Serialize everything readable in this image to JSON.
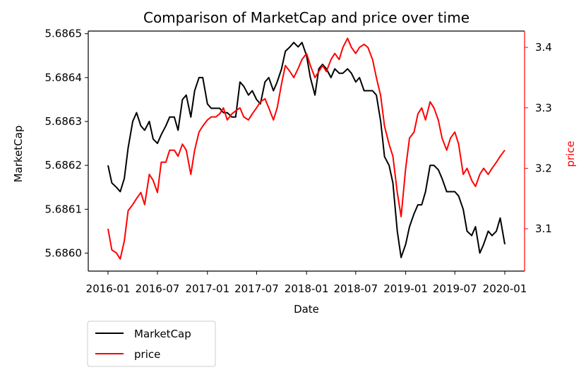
{
  "chart_data": {
    "type": "line",
    "title": "Comparison of MarketCap and price over time",
    "xlabel": "Date",
    "ylabel_left": "MarketCap",
    "ylabel_right": "price",
    "x_ticks": [
      "2016-01",
      "2016-07",
      "2017-01",
      "2017-07",
      "2018-01",
      "2018-07",
      "2019-01",
      "2019-07",
      "2020-01"
    ],
    "y_left_ticks": [
      "5.6860",
      "5.6861",
      "5.6862",
      "5.6863",
      "5.6864",
      "5.6865"
    ],
    "y_right_ticks": [
      "3.1",
      "3.2",
      "3.3",
      "3.4"
    ],
    "y_left_range": [
      5.685959,
      5.686506
    ],
    "y_right_range": [
      3.03,
      3.427
    ],
    "grid": false,
    "legend_position": "below-left",
    "series": [
      {
        "name": "MarketCap",
        "color": "#000000",
        "axis": "left",
        "points": [
          [
            "2016-01-01",
            5.6862
          ],
          [
            "2016-01-15",
            5.68616
          ],
          [
            "2016-02-01",
            5.68615
          ],
          [
            "2016-02-15",
            5.68614
          ],
          [
            "2016-03-01",
            5.68617
          ],
          [
            "2016-03-15",
            5.68624
          ],
          [
            "2016-04-01",
            5.6863
          ],
          [
            "2016-04-15",
            5.68632
          ],
          [
            "2016-05-01",
            5.68629
          ],
          [
            "2016-05-15",
            5.68628
          ],
          [
            "2016-06-01",
            5.6863
          ],
          [
            "2016-06-15",
            5.68626
          ],
          [
            "2016-07-01",
            5.68625
          ],
          [
            "2016-07-15",
            5.68627
          ],
          [
            "2016-08-01",
            5.68629
          ],
          [
            "2016-08-15",
            5.68631
          ],
          [
            "2016-09-01",
            5.68631
          ],
          [
            "2016-09-15",
            5.68628
          ],
          [
            "2016-10-01",
            5.68635
          ],
          [
            "2016-10-15",
            5.68636
          ],
          [
            "2016-11-01",
            5.68631
          ],
          [
            "2016-11-15",
            5.68637
          ],
          [
            "2016-12-01",
            5.6864
          ],
          [
            "2016-12-15",
            5.6864
          ],
          [
            "2017-01-01",
            5.68634
          ],
          [
            "2017-01-15",
            5.68633
          ],
          [
            "2017-02-01",
            5.68633
          ],
          [
            "2017-02-15",
            5.68633
          ],
          [
            "2017-03-01",
            5.68632
          ],
          [
            "2017-03-15",
            5.68632
          ],
          [
            "2017-04-01",
            5.68631
          ],
          [
            "2017-04-15",
            5.68631
          ],
          [
            "2017-05-01",
            5.68639
          ],
          [
            "2017-05-15",
            5.68638
          ],
          [
            "2017-06-01",
            5.68636
          ],
          [
            "2017-06-15",
            5.68637
          ],
          [
            "2017-07-01",
            5.68635
          ],
          [
            "2017-07-15",
            5.68634
          ],
          [
            "2017-08-01",
            5.68639
          ],
          [
            "2017-08-15",
            5.6864
          ],
          [
            "2017-09-01",
            5.68637
          ],
          [
            "2017-09-15",
            5.68639
          ],
          [
            "2017-10-01",
            5.68642
          ],
          [
            "2017-10-15",
            5.68646
          ],
          [
            "2017-11-01",
            5.68647
          ],
          [
            "2017-11-15",
            5.68648
          ],
          [
            "2017-12-01",
            5.68647
          ],
          [
            "2017-12-15",
            5.68648
          ],
          [
            "2018-01-01",
            5.68645
          ],
          [
            "2018-01-15",
            5.6864
          ],
          [
            "2018-02-01",
            5.68636
          ],
          [
            "2018-02-15",
            5.68642
          ],
          [
            "2018-03-01",
            5.68643
          ],
          [
            "2018-03-15",
            5.68642
          ],
          [
            "2018-04-01",
            5.6864
          ],
          [
            "2018-04-15",
            5.68642
          ],
          [
            "2018-05-01",
            5.68641
          ],
          [
            "2018-05-15",
            5.68641
          ],
          [
            "2018-06-01",
            5.68642
          ],
          [
            "2018-06-15",
            5.68641
          ],
          [
            "2018-07-01",
            5.68639
          ],
          [
            "2018-07-15",
            5.6864
          ],
          [
            "2018-08-01",
            5.68637
          ],
          [
            "2018-08-15",
            5.68637
          ],
          [
            "2018-09-01",
            5.68637
          ],
          [
            "2018-09-15",
            5.68636
          ],
          [
            "2018-10-01",
            5.6863
          ],
          [
            "2018-10-15",
            5.68622
          ],
          [
            "2018-11-01",
            5.6862
          ],
          [
            "2018-11-15",
            5.68616
          ],
          [
            "2018-12-01",
            5.68605
          ],
          [
            "2018-12-15",
            5.68599
          ],
          [
            "2019-01-01",
            5.68602
          ],
          [
            "2019-01-15",
            5.68606
          ],
          [
            "2019-02-01",
            5.68609
          ],
          [
            "2019-02-15",
            5.68611
          ],
          [
            "2019-03-01",
            5.68611
          ],
          [
            "2019-03-15",
            5.68614
          ],
          [
            "2019-04-01",
            5.6862
          ],
          [
            "2019-04-15",
            5.6862
          ],
          [
            "2019-05-01",
            5.68619
          ],
          [
            "2019-05-15",
            5.68617
          ],
          [
            "2019-06-01",
            5.68614
          ],
          [
            "2019-06-15",
            5.68614
          ],
          [
            "2019-07-01",
            5.68614
          ],
          [
            "2019-07-15",
            5.68613
          ],
          [
            "2019-08-01",
            5.6861
          ],
          [
            "2019-08-15",
            5.68605
          ],
          [
            "2019-09-01",
            5.68604
          ],
          [
            "2019-09-15",
            5.68606
          ],
          [
            "2019-10-01",
            5.686
          ],
          [
            "2019-10-15",
            5.68602
          ],
          [
            "2019-11-01",
            5.68605
          ],
          [
            "2019-11-15",
            5.68604
          ],
          [
            "2019-12-01",
            5.68605
          ],
          [
            "2019-12-15",
            5.68608
          ],
          [
            "2020-01-01",
            5.68602
          ]
        ]
      },
      {
        "name": "price",
        "color": "#ff0000",
        "axis": "right",
        "points": [
          [
            "2016-01-01",
            3.1
          ],
          [
            "2016-01-15",
            3.065
          ],
          [
            "2016-02-01",
            3.06
          ],
          [
            "2016-02-15",
            3.05
          ],
          [
            "2016-03-01",
            3.08
          ],
          [
            "2016-03-15",
            3.13
          ],
          [
            "2016-04-01",
            3.14
          ],
          [
            "2016-04-15",
            3.15
          ],
          [
            "2016-05-01",
            3.16
          ],
          [
            "2016-05-15",
            3.14
          ],
          [
            "2016-06-01",
            3.19
          ],
          [
            "2016-06-15",
            3.18
          ],
          [
            "2016-07-01",
            3.16
          ],
          [
            "2016-07-15",
            3.21
          ],
          [
            "2016-08-01",
            3.21
          ],
          [
            "2016-08-15",
            3.23
          ],
          [
            "2016-09-01",
            3.23
          ],
          [
            "2016-09-15",
            3.22
          ],
          [
            "2016-10-01",
            3.24
          ],
          [
            "2016-10-15",
            3.23
          ],
          [
            "2016-11-01",
            3.19
          ],
          [
            "2016-11-15",
            3.23
          ],
          [
            "2016-12-01",
            3.26
          ],
          [
            "2016-12-15",
            3.27
          ],
          [
            "2017-01-01",
            3.28
          ],
          [
            "2017-01-15",
            3.285
          ],
          [
            "2017-02-01",
            3.285
          ],
          [
            "2017-02-15",
            3.29
          ],
          [
            "2017-03-01",
            3.3
          ],
          [
            "2017-03-15",
            3.28
          ],
          [
            "2017-04-01",
            3.29
          ],
          [
            "2017-04-15",
            3.295
          ],
          [
            "2017-05-01",
            3.3
          ],
          [
            "2017-05-15",
            3.285
          ],
          [
            "2017-06-01",
            3.28
          ],
          [
            "2017-06-15",
            3.29
          ],
          [
            "2017-07-01",
            3.3
          ],
          [
            "2017-07-15",
            3.31
          ],
          [
            "2017-08-01",
            3.315
          ],
          [
            "2017-08-15",
            3.3
          ],
          [
            "2017-09-01",
            3.28
          ],
          [
            "2017-09-15",
            3.3
          ],
          [
            "2017-10-01",
            3.34
          ],
          [
            "2017-10-15",
            3.37
          ],
          [
            "2017-11-01",
            3.36
          ],
          [
            "2017-11-15",
            3.35
          ],
          [
            "2017-12-01",
            3.365
          ],
          [
            "2017-12-15",
            3.38
          ],
          [
            "2018-01-01",
            3.39
          ],
          [
            "2018-01-15",
            3.37
          ],
          [
            "2018-02-01",
            3.35
          ],
          [
            "2018-02-15",
            3.36
          ],
          [
            "2018-03-01",
            3.37
          ],
          [
            "2018-03-15",
            3.36
          ],
          [
            "2018-04-01",
            3.38
          ],
          [
            "2018-04-15",
            3.39
          ],
          [
            "2018-05-01",
            3.38
          ],
          [
            "2018-05-15",
            3.4
          ],
          [
            "2018-06-01",
            3.415
          ],
          [
            "2018-06-15",
            3.4
          ],
          [
            "2018-07-01",
            3.39
          ],
          [
            "2018-07-15",
            3.4
          ],
          [
            "2018-08-01",
            3.405
          ],
          [
            "2018-08-15",
            3.4
          ],
          [
            "2018-09-01",
            3.38
          ],
          [
            "2018-09-15",
            3.35
          ],
          [
            "2018-10-01",
            3.32
          ],
          [
            "2018-10-15",
            3.27
          ],
          [
            "2018-11-01",
            3.24
          ],
          [
            "2018-11-15",
            3.22
          ],
          [
            "2018-12-01",
            3.16
          ],
          [
            "2018-12-15",
            3.12
          ],
          [
            "2019-01-01",
            3.2
          ],
          [
            "2019-01-15",
            3.25
          ],
          [
            "2019-02-01",
            3.26
          ],
          [
            "2019-02-15",
            3.29
          ],
          [
            "2019-03-01",
            3.3
          ],
          [
            "2019-03-15",
            3.28
          ],
          [
            "2019-04-01",
            3.31
          ],
          [
            "2019-04-15",
            3.3
          ],
          [
            "2019-05-01",
            3.28
          ],
          [
            "2019-05-15",
            3.25
          ],
          [
            "2019-06-01",
            3.23
          ],
          [
            "2019-06-15",
            3.25
          ],
          [
            "2019-07-01",
            3.26
          ],
          [
            "2019-07-15",
            3.24
          ],
          [
            "2019-08-01",
            3.19
          ],
          [
            "2019-08-15",
            3.2
          ],
          [
            "2019-09-01",
            3.18
          ],
          [
            "2019-09-15",
            3.17
          ],
          [
            "2019-10-01",
            3.19
          ],
          [
            "2019-10-15",
            3.2
          ],
          [
            "2019-11-01",
            3.19
          ],
          [
            "2019-11-15",
            3.2
          ],
          [
            "2019-12-01",
            3.21
          ],
          [
            "2019-12-15",
            3.22
          ],
          [
            "2020-01-01",
            3.23
          ]
        ]
      }
    ]
  }
}
